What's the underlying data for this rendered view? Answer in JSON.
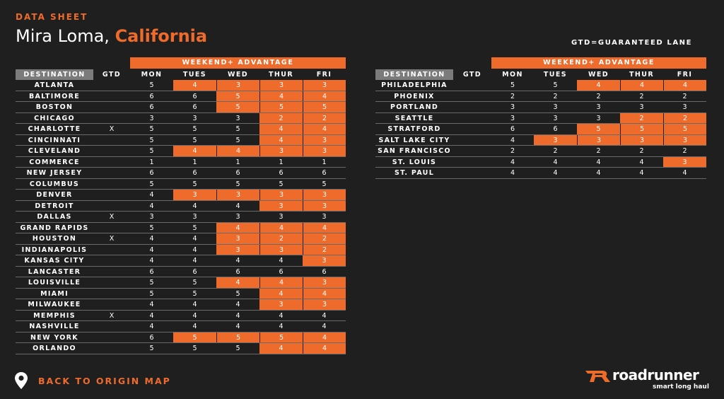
{
  "header": {
    "eyebrow": "DATA SHEET",
    "city": "Mira Loma, ",
    "state": "California",
    "gtd_note": "GTD=GUARANTEED LANE"
  },
  "columns": {
    "weekend_label": "WEEKEND+ ADVANTAGE",
    "destination": "DESTINATION",
    "gtd": "GTD",
    "mon": "MON",
    "tues": "TUES",
    "wed": "WED",
    "thur": "THUR",
    "fri": "FRI"
  },
  "colors": {
    "accent": "#ef6b2b",
    "background": "#1f1f1f",
    "header_gray": "#7b7b7b"
  },
  "left_table": [
    {
      "dest": "ATLANTA",
      "gtd": "",
      "days": [
        "5",
        "4",
        "3",
        "3",
        "3"
      ],
      "adv": [
        false,
        true,
        true,
        true,
        true
      ]
    },
    {
      "dest": "BALTIMORE",
      "gtd": "",
      "days": [
        "6",
        "6",
        "5",
        "4",
        "4"
      ],
      "adv": [
        false,
        false,
        true,
        true,
        true
      ]
    },
    {
      "dest": "BOSTON",
      "gtd": "",
      "days": [
        "6",
        "6",
        "5",
        "5",
        "5"
      ],
      "adv": [
        false,
        false,
        true,
        true,
        true
      ]
    },
    {
      "dest": "CHICAGO",
      "gtd": "",
      "days": [
        "3",
        "3",
        "3",
        "2",
        "2"
      ],
      "adv": [
        false,
        false,
        false,
        true,
        true
      ]
    },
    {
      "dest": "CHARLOTTE",
      "gtd": "X",
      "days": [
        "5",
        "5",
        "5",
        "4",
        "4"
      ],
      "adv": [
        false,
        false,
        false,
        true,
        true
      ]
    },
    {
      "dest": "CINCINNATI",
      "gtd": "",
      "days": [
        "5",
        "5",
        "5",
        "4",
        "3"
      ],
      "adv": [
        false,
        false,
        false,
        true,
        true
      ]
    },
    {
      "dest": "CLEVELAND",
      "gtd": "",
      "days": [
        "5",
        "4",
        "4",
        "3",
        "3"
      ],
      "adv": [
        false,
        true,
        true,
        true,
        true
      ]
    },
    {
      "dest": "COMMERCE",
      "gtd": "",
      "days": [
        "1",
        "1",
        "1",
        "1",
        "1"
      ],
      "adv": [
        false,
        false,
        false,
        false,
        false
      ]
    },
    {
      "dest": "NEW JERSEY",
      "gtd": "",
      "days": [
        "6",
        "6",
        "6",
        "6",
        "6"
      ],
      "adv": [
        false,
        false,
        false,
        false,
        false
      ]
    },
    {
      "dest": "COLUMBUS",
      "gtd": "",
      "days": [
        "5",
        "5",
        "5",
        "5",
        "5"
      ],
      "adv": [
        false,
        false,
        false,
        false,
        false
      ]
    },
    {
      "dest": "DENVER",
      "gtd": "",
      "days": [
        "4",
        "3",
        "3",
        "3",
        "3"
      ],
      "adv": [
        false,
        true,
        true,
        true,
        true
      ]
    },
    {
      "dest": "DETROIT",
      "gtd": "",
      "days": [
        "4",
        "4",
        "4",
        "3",
        "3"
      ],
      "adv": [
        false,
        false,
        false,
        true,
        true
      ]
    },
    {
      "dest": "DALLAS",
      "gtd": "X",
      "days": [
        "3",
        "3",
        "3",
        "3",
        "3"
      ],
      "adv": [
        false,
        false,
        false,
        false,
        false
      ]
    },
    {
      "dest": "GRAND RAPIDS",
      "gtd": "",
      "days": [
        "5",
        "5",
        "4",
        "4",
        "4"
      ],
      "adv": [
        false,
        false,
        true,
        true,
        true
      ]
    },
    {
      "dest": "HOUSTON",
      "gtd": "X",
      "days": [
        "4",
        "4",
        "3",
        "2",
        "2"
      ],
      "adv": [
        false,
        false,
        true,
        true,
        true
      ]
    },
    {
      "dest": "INDIANAPOLIS",
      "gtd": "",
      "days": [
        "4",
        "4",
        "3",
        "3",
        "2"
      ],
      "adv": [
        false,
        false,
        true,
        true,
        true
      ]
    },
    {
      "dest": "KANSAS CITY",
      "gtd": "",
      "days": [
        "4",
        "4",
        "4",
        "4",
        "3"
      ],
      "adv": [
        false,
        false,
        false,
        false,
        true
      ]
    },
    {
      "dest": "LANCASTER",
      "gtd": "",
      "days": [
        "6",
        "6",
        "6",
        "6",
        "6"
      ],
      "adv": [
        false,
        false,
        false,
        false,
        false
      ]
    },
    {
      "dest": "LOUISVILLE",
      "gtd": "",
      "days": [
        "5",
        "5",
        "4",
        "4",
        "3"
      ],
      "adv": [
        false,
        false,
        true,
        true,
        true
      ]
    },
    {
      "dest": "MIAMI",
      "gtd": "",
      "days": [
        "5",
        "5",
        "5",
        "4",
        "4"
      ],
      "adv": [
        false,
        false,
        false,
        true,
        true
      ]
    },
    {
      "dest": "MILWAUKEE",
      "gtd": "",
      "days": [
        "4",
        "4",
        "4",
        "3",
        "3"
      ],
      "adv": [
        false,
        false,
        false,
        true,
        true
      ]
    },
    {
      "dest": "MEMPHIS",
      "gtd": "X",
      "days": [
        "4",
        "4",
        "4",
        "4",
        "4"
      ],
      "adv": [
        false,
        false,
        false,
        false,
        false
      ]
    },
    {
      "dest": "NASHVILLE",
      "gtd": "",
      "days": [
        "4",
        "4",
        "4",
        "4",
        "4"
      ],
      "adv": [
        false,
        false,
        false,
        false,
        false
      ]
    },
    {
      "dest": "NEW YORK",
      "gtd": "",
      "days": [
        "6",
        "5",
        "5",
        "5",
        "4"
      ],
      "adv": [
        false,
        true,
        true,
        true,
        true
      ]
    },
    {
      "dest": "ORLANDO",
      "gtd": "",
      "days": [
        "5",
        "5",
        "5",
        "4",
        "4"
      ],
      "adv": [
        false,
        false,
        false,
        true,
        true
      ]
    }
  ],
  "right_table": [
    {
      "dest": "PHILADELPHIA",
      "gtd": "",
      "days": [
        "5",
        "5",
        "4",
        "4",
        "4"
      ],
      "adv": [
        false,
        false,
        true,
        true,
        true
      ]
    },
    {
      "dest": "PHOENIX",
      "gtd": "",
      "days": [
        "2",
        "2",
        "2",
        "2",
        "2"
      ],
      "adv": [
        false,
        false,
        false,
        false,
        false
      ]
    },
    {
      "dest": "PORTLAND",
      "gtd": "",
      "days": [
        "3",
        "3",
        "3",
        "3",
        "3"
      ],
      "adv": [
        false,
        false,
        false,
        false,
        false
      ]
    },
    {
      "dest": "SEATTLE",
      "gtd": "",
      "days": [
        "3",
        "3",
        "3",
        "2",
        "2"
      ],
      "adv": [
        false,
        false,
        false,
        true,
        true
      ]
    },
    {
      "dest": "STRATFORD",
      "gtd": "",
      "days": [
        "6",
        "6",
        "5",
        "5",
        "5"
      ],
      "adv": [
        false,
        false,
        true,
        true,
        true
      ]
    },
    {
      "dest": "SALT LAKE CITY",
      "gtd": "",
      "days": [
        "4",
        "3",
        "3",
        "3",
        "3"
      ],
      "adv": [
        false,
        true,
        true,
        true,
        true
      ]
    },
    {
      "dest": "SAN FRANCISCO",
      "gtd": "",
      "days": [
        "2",
        "2",
        "2",
        "2",
        "2"
      ],
      "adv": [
        false,
        false,
        false,
        false,
        false
      ]
    },
    {
      "dest": "ST. LOUIS",
      "gtd": "",
      "days": [
        "4",
        "4",
        "4",
        "4",
        "3"
      ],
      "adv": [
        false,
        false,
        false,
        false,
        true
      ]
    },
    {
      "dest": "ST. PAUL",
      "gtd": "",
      "days": [
        "4",
        "4",
        "4",
        "4",
        "4"
      ],
      "adv": [
        false,
        false,
        false,
        false,
        false
      ]
    }
  ],
  "footer": {
    "back_label": "BACK TO ORIGIN MAP",
    "logo_word": "roadrunner",
    "logo_tagline": "smart long haul"
  }
}
